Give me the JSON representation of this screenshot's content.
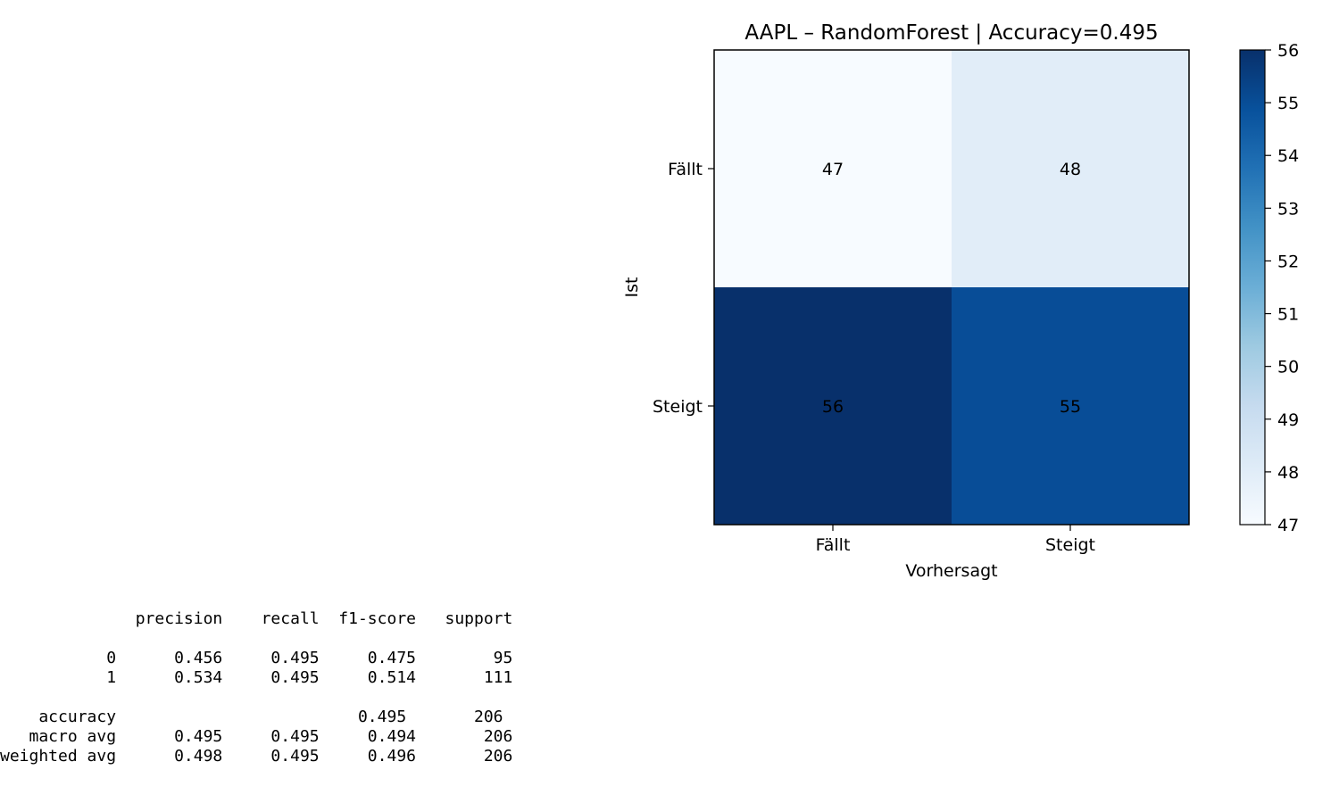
{
  "chart_data": {
    "type": "heatmap",
    "title": "AAPL – RandomForest | Accuracy=0.495",
    "xlabel": "Vorhersagt",
    "ylabel": "Ist",
    "x_categories": [
      "Fällt",
      "Steigt"
    ],
    "y_categories": [
      "Fällt",
      "Steigt"
    ],
    "matrix": [
      [
        47,
        48
      ],
      [
        56,
        55
      ]
    ],
    "colormap": "Blues",
    "color_range": [
      47,
      56
    ],
    "colorbar_ticks": [
      "47",
      "48",
      "49",
      "50",
      "51",
      "52",
      "53",
      "54",
      "55",
      "56"
    ]
  },
  "report": {
    "lines": [
      "              precision    recall  f1-score   support",
      "",
      "           0      0.456     0.495     0.475        95",
      "           1      0.534     0.495     0.514       111",
      "",
      "    accuracy                         0.495       206",
      "   macro avg      0.495     0.495     0.494       206",
      "weighted avg      0.498     0.495     0.496       206"
    ]
  }
}
